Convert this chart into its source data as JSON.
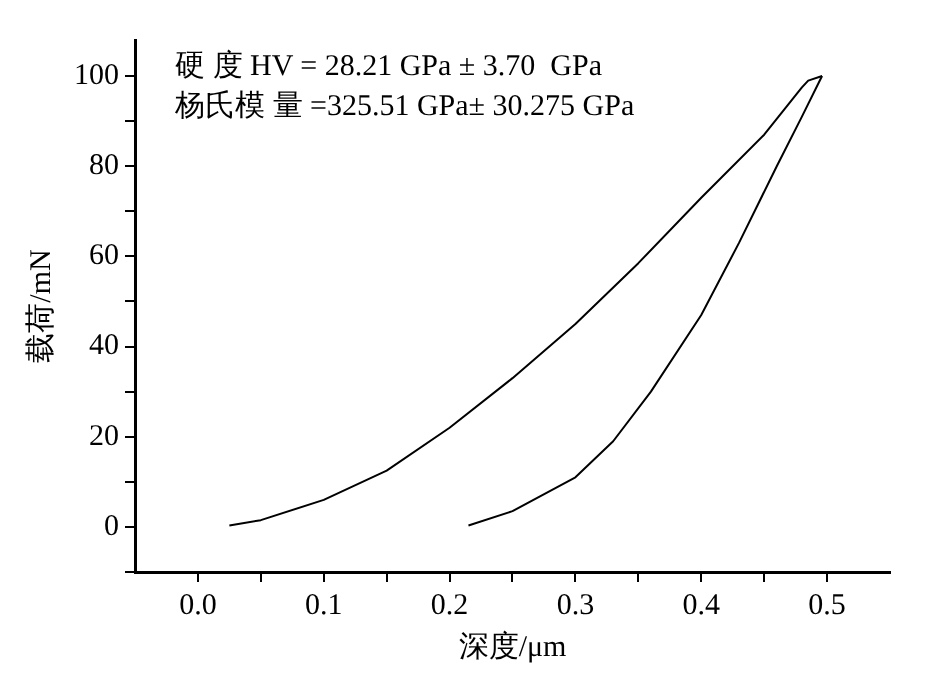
{
  "chart_data": {
    "type": "line",
    "xlabel": "深度/μm",
    "ylabel": "载荷/mN",
    "annotations": [
      "硬 度 HV = 28.21 GPa ± 3.70  GPa",
      "杨氏模 量 =325.51 GPa± 30.275 GPa"
    ],
    "series": [
      {
        "color": "#000000",
        "x": [
          0.025,
          0.05,
          0.1,
          0.15,
          0.2,
          0.25,
          0.3,
          0.35,
          0.4,
          0.45,
          0.47,
          0.48,
          0.485,
          0.496
        ],
        "values": [
          0.3,
          1.5,
          6,
          12.5,
          22,
          33,
          45,
          58.5,
          73,
          87,
          94,
          97.5,
          99,
          100
        ]
      },
      {
        "color": "#000000",
        "x": [
          0.215,
          0.25,
          0.3,
          0.33,
          0.36,
          0.4,
          0.43,
          0.46,
          0.48,
          0.496
        ],
        "values": [
          0.3,
          3.5,
          11,
          19,
          30,
          47,
          63,
          80,
          91,
          100
        ]
      }
    ],
    "xlim": [
      -0.05,
      0.55
    ],
    "ylim": [
      -10,
      108
    ],
    "xticks": [
      {
        "value": 0,
        "label": "0.0"
      },
      {
        "value": 0.05,
        "label": null
      },
      {
        "value": 0.1,
        "label": "0.1"
      },
      {
        "value": 0.15,
        "label": null
      },
      {
        "value": 0.2,
        "label": "0.2"
      },
      {
        "value": 0.25,
        "label": null
      },
      {
        "value": 0.3,
        "label": "0.3"
      },
      {
        "value": 0.35,
        "label": null
      },
      {
        "value": 0.4,
        "label": "0.4"
      },
      {
        "value": 0.45,
        "label": null
      },
      {
        "value": 0.5,
        "label": "0.5"
      }
    ],
    "yticks": [
      {
        "value": -10,
        "label": null
      },
      0,
      {
        "value": 10,
        "label": null
      },
      20,
      {
        "value": 30,
        "label": null
      },
      40,
      {
        "value": 50,
        "label": null
      },
      60,
      {
        "value": 70,
        "label": null
      },
      80,
      {
        "value": 90,
        "label": null
      },
      100
    ],
    "grid": false,
    "legend": false,
    "marker": "none",
    "line_style": "solid"
  }
}
